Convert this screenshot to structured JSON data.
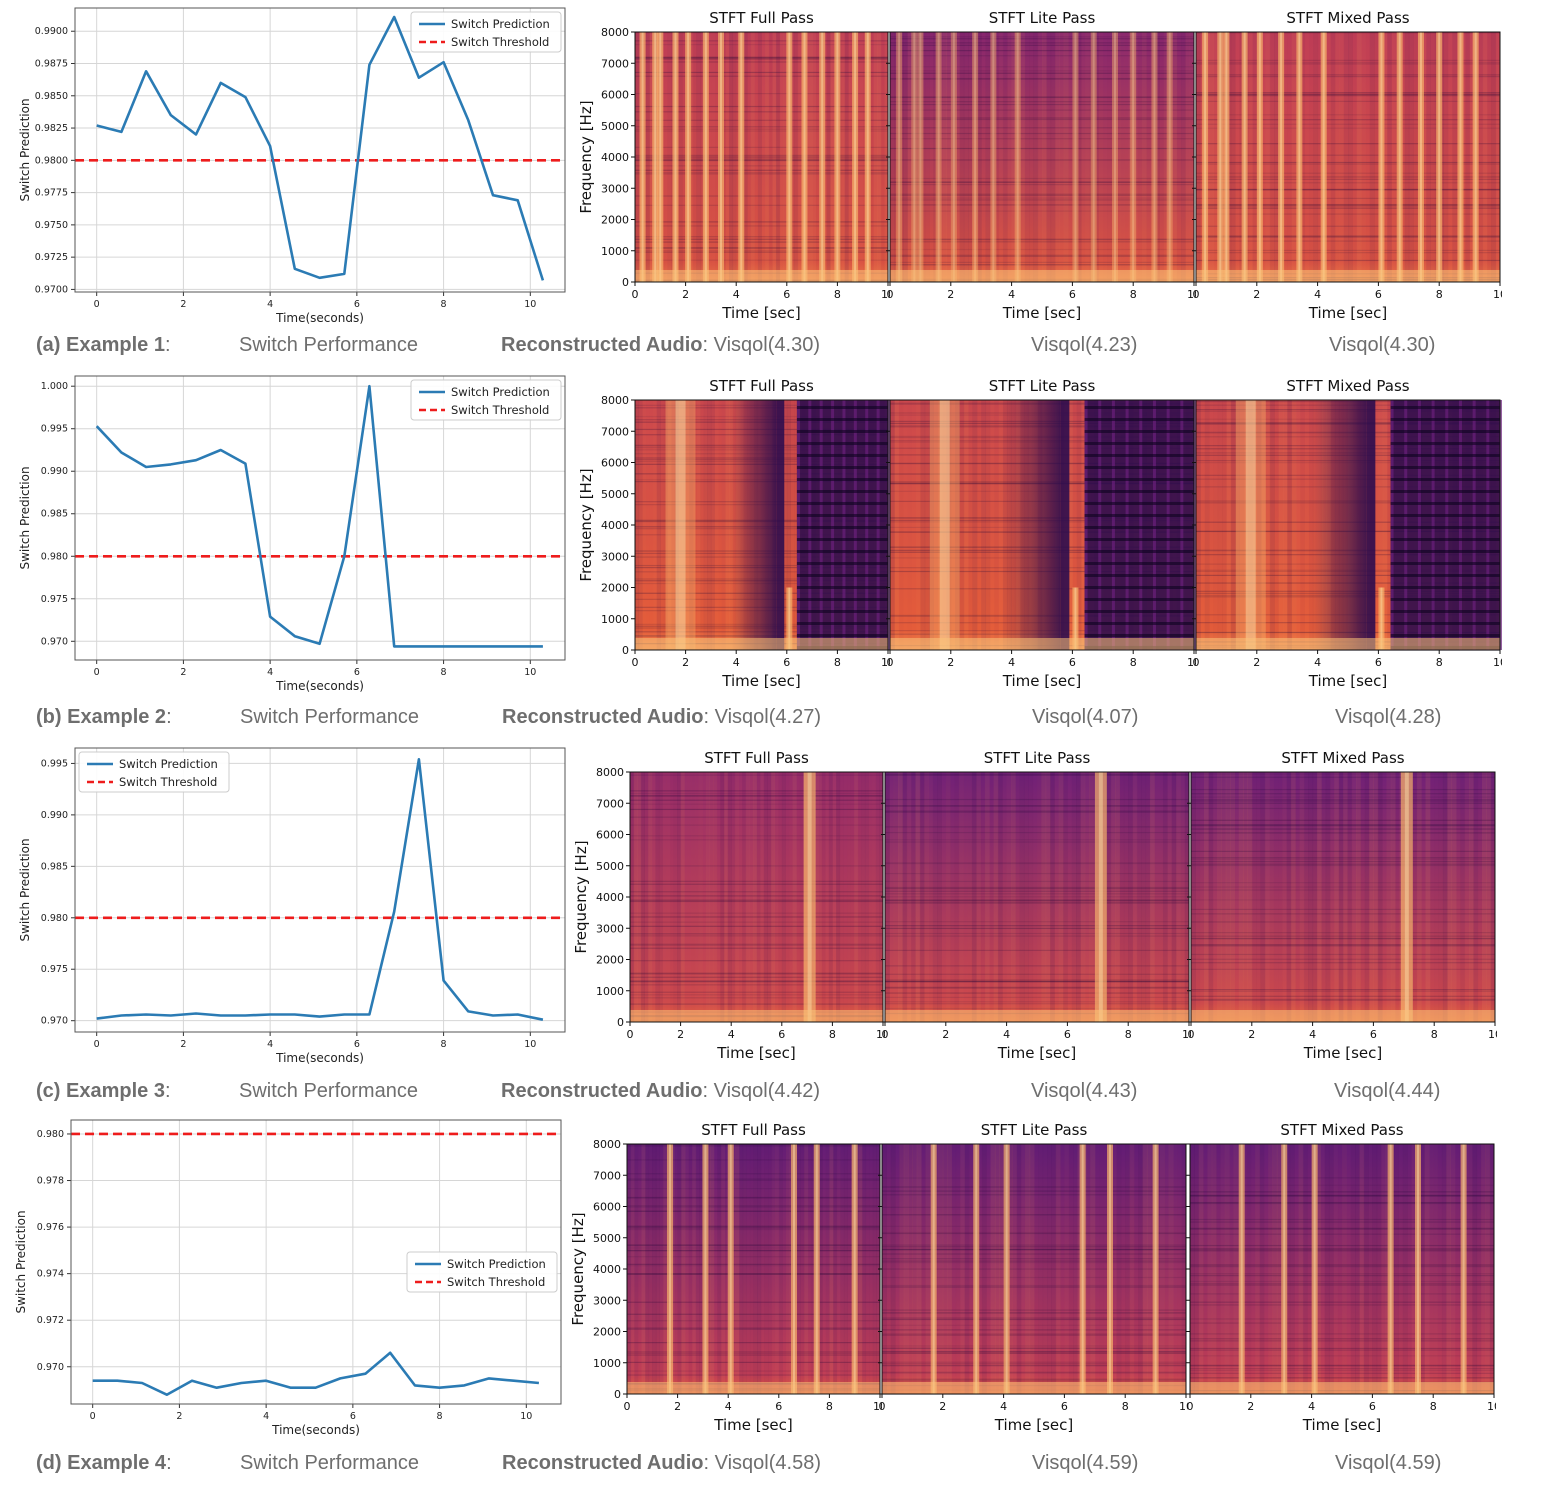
{
  "chart_data": [
    {
      "type": "line",
      "panel": "a",
      "series": [
        {
          "name": "Switch Prediction",
          "color": "#2b7bb4",
          "x": [
            0,
            0.57,
            1.14,
            1.71,
            2.29,
            2.86,
            3.43,
            4.0,
            4.57,
            5.14,
            5.71,
            6.29,
            6.86,
            7.43,
            8.0,
            8.57,
            9.14,
            9.71,
            10.29
          ],
          "values": [
            0.9827,
            0.9822,
            0.9869,
            0.9835,
            0.982,
            0.986,
            0.9849,
            0.9811,
            0.9716,
            0.9709,
            0.9712,
            0.9874,
            0.9911,
            0.9864,
            0.9876,
            0.9831,
            0.9773,
            0.9769,
            0.9707
          ]
        },
        {
          "name": "Switch Threshold",
          "color": "#ee1c1c",
          "constant": 0.98
        }
      ],
      "xlabel": "Time(seconds)",
      "ylabel": "Switch Prediction",
      "xlim": [
        -0.5,
        10.8
      ],
      "ylim": [
        0.9698,
        0.9918
      ],
      "xticks": [
        0,
        2,
        4,
        6,
        8,
        10
      ],
      "yticks": [
        0.97,
        0.9725,
        0.975,
        0.9775,
        0.98,
        0.9825,
        0.985,
        0.9875,
        0.99
      ],
      "ytick_labels": [
        "0.9700",
        "0.9725",
        "0.9750",
        "0.9775",
        "0.9800",
        "0.9825",
        "0.9850",
        "0.9875",
        "0.9900"
      ],
      "grid": true,
      "legend": "top-right"
    },
    {
      "type": "line",
      "panel": "b",
      "series": [
        {
          "name": "Switch Prediction",
          "color": "#2b7bb4",
          "x": [
            0,
            0.57,
            1.14,
            1.71,
            2.29,
            2.86,
            3.43,
            4.0,
            4.57,
            5.14,
            5.71,
            6.29,
            6.86,
            7.43,
            8.0,
            8.57,
            9.14,
            9.71,
            10.29
          ],
          "values": [
            0.9953,
            0.9922,
            0.9905,
            0.9908,
            0.9913,
            0.9925,
            0.9909,
            0.9729,
            0.9706,
            0.9697,
            0.98,
            1.0,
            0.9694,
            0.9694,
            0.9694,
            0.9694,
            0.9694,
            0.9694,
            0.9694
          ]
        },
        {
          "name": "Switch Threshold",
          "color": "#ee1c1c",
          "constant": 0.98
        }
      ],
      "xlabel": "Time(seconds)",
      "ylabel": "Switch Prediction",
      "xlim": [
        -0.5,
        10.8
      ],
      "ylim": [
        0.9678,
        1.0012
      ],
      "xticks": [
        0,
        2,
        4,
        6,
        8,
        10
      ],
      "yticks": [
        0.97,
        0.975,
        0.98,
        0.985,
        0.99,
        0.995,
        1.0
      ],
      "ytick_labels": [
        "0.970",
        "0.975",
        "0.980",
        "0.985",
        "0.990",
        "0.995",
        "1.000"
      ],
      "grid": true,
      "legend": "top-right"
    },
    {
      "type": "line",
      "panel": "c",
      "series": [
        {
          "name": "Switch Prediction",
          "color": "#2b7bb4",
          "x": [
            0,
            0.57,
            1.14,
            1.71,
            2.29,
            2.86,
            3.43,
            4.0,
            4.57,
            5.14,
            5.71,
            6.29,
            6.86,
            7.43,
            8.0,
            8.57,
            9.14,
            9.71,
            10.29
          ],
          "values": [
            0.9702,
            0.9705,
            0.9706,
            0.9705,
            0.9707,
            0.9705,
            0.9705,
            0.9706,
            0.9706,
            0.9704,
            0.9706,
            0.9706,
            0.9806,
            0.9954,
            0.9739,
            0.9709,
            0.9705,
            0.9706,
            0.9701
          ]
        },
        {
          "name": "Switch Threshold",
          "color": "#ee1c1c",
          "constant": 0.98
        }
      ],
      "xlabel": "Time(seconds)",
      "ylabel": "Switch Prediction",
      "xlim": [
        -0.5,
        10.8
      ],
      "ylim": [
        0.9689,
        0.9965
      ],
      "xticks": [
        0,
        2,
        4,
        6,
        8,
        10
      ],
      "yticks": [
        0.97,
        0.975,
        0.98,
        0.985,
        0.99,
        0.995
      ],
      "ytick_labels": [
        "0.970",
        "0.975",
        "0.980",
        "0.985",
        "0.990",
        "0.995"
      ],
      "grid": true,
      "legend": "top-left"
    },
    {
      "type": "line",
      "panel": "d",
      "series": [
        {
          "name": "Switch Prediction",
          "color": "#2b7bb4",
          "x": [
            0,
            0.57,
            1.14,
            1.71,
            2.29,
            2.86,
            3.43,
            4.0,
            4.57,
            5.14,
            5.71,
            6.29,
            6.86,
            7.43,
            8.0,
            8.57,
            9.14,
            9.71,
            10.29
          ],
          "values": [
            0.9694,
            0.9694,
            0.9693,
            0.9688,
            0.9694,
            0.9691,
            0.9693,
            0.9694,
            0.9691,
            0.9691,
            0.9695,
            0.9697,
            0.9706,
            0.9692,
            0.9691,
            0.9692,
            0.9695,
            0.9694,
            0.9693
          ]
        },
        {
          "name": "Switch Threshold",
          "color": "#ee1c1c",
          "constant": 0.98
        }
      ],
      "xlabel": "Time(seconds)",
      "ylabel": "Switch Prediction",
      "xlim": [
        -0.5,
        10.8
      ],
      "ylim": [
        0.9684,
        0.9806
      ],
      "xticks": [
        0,
        2,
        4,
        6,
        8,
        10
      ],
      "yticks": [
        0.97,
        0.972,
        0.974,
        0.976,
        0.978,
        0.98
      ],
      "ytick_labels": [
        "0.970",
        "0.972",
        "0.974",
        "0.976",
        "0.978",
        "0.980"
      ],
      "grid": true,
      "legend": "right"
    }
  ],
  "spectrograms": {
    "titles": [
      "STFT Full Pass",
      "STFT Lite Pass",
      "STFT Mixed Pass"
    ],
    "xlabel": "Time [sec]",
    "ylabel": "Frequency [Hz]",
    "xticks": [
      0,
      2,
      4,
      6,
      8,
      10
    ],
    "yticks": [
      0,
      1000,
      2000,
      3000,
      4000,
      5000,
      6000,
      7000,
      8000
    ],
    "xlim": [
      0,
      10
    ],
    "ylim": [
      0,
      8000
    ],
    "colormap_colors": [
      "#2a0b4e",
      "#6a1f7a",
      "#b4345f",
      "#e45c3a",
      "#f7a15a",
      "#fbe6a8"
    ],
    "rows": [
      {
        "style": "speech",
        "bright_bands": [
          0.3,
          0.8,
          1.0,
          1.6,
          2.1,
          2.8,
          3.4,
          4.2,
          6.1,
          6.7,
          7.4,
          8.0,
          8.7,
          9.2
        ],
        "quiet_ranges": []
      },
      {
        "style": "fade",
        "bright_bands": [
          1.8,
          6.1
        ],
        "quiet_ranges": [
          [
            5.6,
            5.9
          ],
          [
            6.4,
            10
          ]
        ]
      },
      {
        "style": "single",
        "bright_bands": [
          7.1
        ],
        "quiet_ranges": []
      },
      {
        "style": "music",
        "bright_bands": [
          1.7,
          3.1,
          6.6,
          4.1,
          7.5,
          9.0
        ],
        "quiet_ranges": []
      }
    ]
  },
  "captions": [
    {
      "label": "(a)",
      "example": "Example 1",
      "sep": ":",
      "switch": "Switch Performance",
      "recon": "Reconstructed Audio",
      "v_full": "Visqol(4.30)",
      "v_lite": "Visqol(4.23)",
      "v_mixed": "Visqol(4.30)"
    },
    {
      "label": "(b)",
      "example": "Example 2",
      "sep": ":",
      "switch": "Switch Performance",
      "recon": "Reconstructed Audio",
      "v_full": "Visqol(4.27)",
      "v_lite": "Visqol(4.07)",
      "v_mixed": "Visqol(4.28)"
    },
    {
      "label": "(c)",
      "example": "Example 3",
      "sep": ":",
      "switch": "Switch Performance",
      "recon": "Reconstructed Audio",
      "v_full": "Visqol(4.42)",
      "v_lite": "Visqol(4.43)",
      "v_mixed": "Visqol(4.44)"
    },
    {
      "label": "(d)",
      "example": "Example 4",
      "sep": ":",
      "switch": "Switch Performance",
      "recon": "Reconstructed Audio",
      "v_full": "Visqol(4.58)",
      "v_lite": "Visqol(4.59)",
      "v_mixed": "Visqol(4.59)"
    }
  ]
}
